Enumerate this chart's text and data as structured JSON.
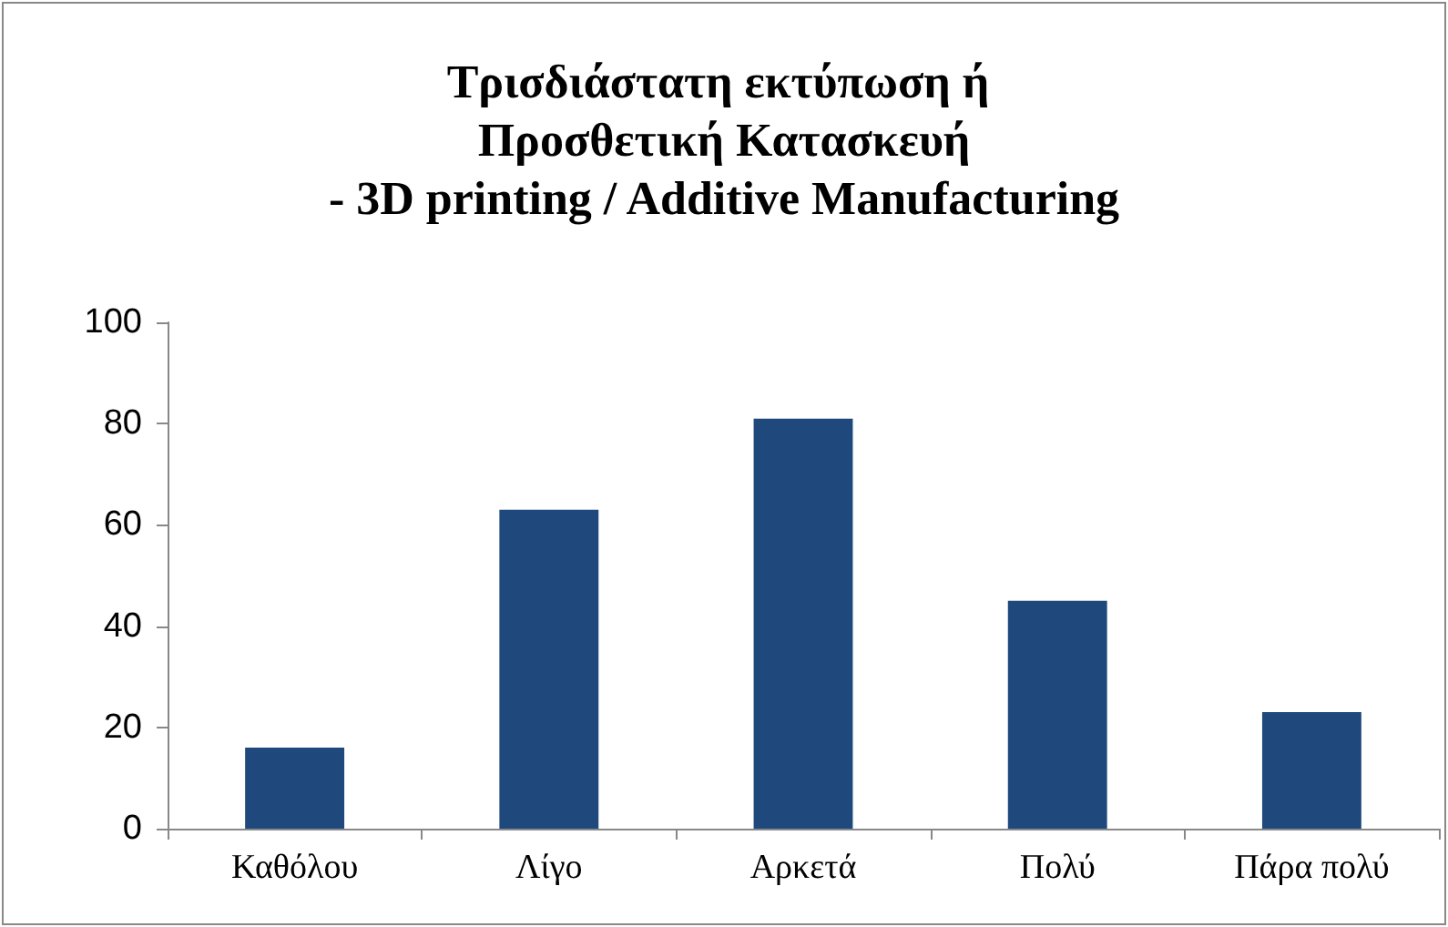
{
  "chart_data": {
    "type": "bar",
    "title": "Τρισδιάστατη εκτύπωση ή Προσθετική Κατασκευή\n- 3D printing / Additive Manufacturing",
    "categories": [
      "Καθόλου",
      "Λίγο",
      "Αρκετά",
      "Πολύ",
      "Πάρα πολύ"
    ],
    "values": [
      16,
      63,
      81,
      45,
      23
    ],
    "color": "#1f497d",
    "ylim": [
      0,
      100
    ],
    "yticks": [
      0,
      20,
      40,
      60,
      80,
      100
    ],
    "grid": false
  }
}
